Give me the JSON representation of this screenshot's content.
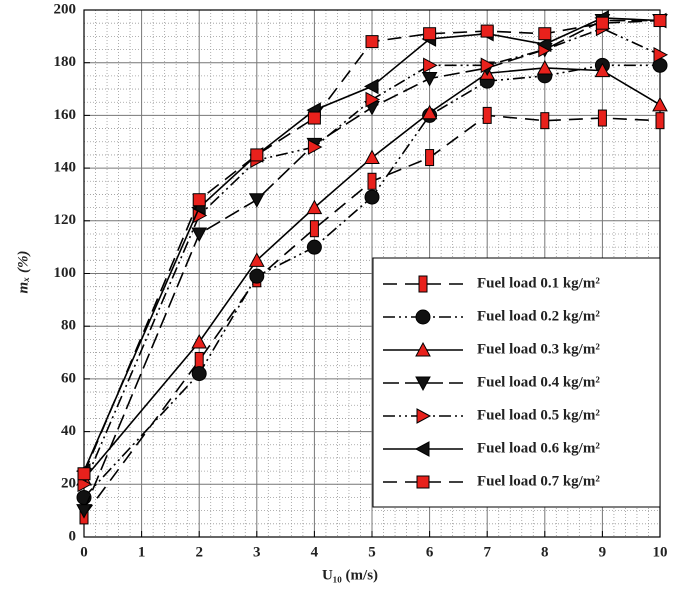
{
  "chart_data": {
    "type": "line",
    "x_label": "U₁₀ (m/s)",
    "y_label": "mₓ (%)",
    "x": [
      0,
      2,
      3,
      4,
      5,
      6,
      7,
      8,
      9,
      10
    ],
    "xlim": [
      0,
      10
    ],
    "xticks": [
      0,
      1,
      2,
      3,
      4,
      5,
      6,
      7,
      8,
      9,
      10
    ],
    "ylim": [
      0,
      200
    ],
    "yticks": [
      0,
      20,
      40,
      60,
      80,
      100,
      120,
      140,
      160,
      180,
      200
    ],
    "grid": true,
    "legend": "lower right",
    "series": [
      {
        "name": "Fuel load 0.1 kg/m²",
        "color": "#e8211c",
        "marker": "bar",
        "dash": "14 8",
        "values": [
          8,
          67,
          98,
          117,
          135,
          144,
          160,
          158,
          159,
          158
        ]
      },
      {
        "name": "Fuel load 0.2 kg/m²",
        "color": "#111111",
        "marker": "circle",
        "dash": "12 4 2 4 2 4",
        "values": [
          15,
          62,
          99,
          110,
          129,
          160,
          173,
          175,
          179,
          179
        ]
      },
      {
        "name": "Fuel load 0.3 kg/m²",
        "color": "#e8211c",
        "marker": "up",
        "dash": "none",
        "values": [
          22,
          74,
          105,
          125,
          144,
          161,
          176,
          178,
          177,
          164
        ]
      },
      {
        "name": "Fuel load 0.4 kg/m²",
        "color": "#111111",
        "marker": "down",
        "dash": "16 6",
        "values": [
          10,
          115,
          128,
          149,
          163,
          174,
          178,
          185,
          196,
          196
        ]
      },
      {
        "name": "Fuel load 0.5 kg/m²",
        "color": "#e8211c",
        "marker": "right",
        "dash": "12 4 2 4 2 4",
        "values": [
          20,
          122,
          143,
          148,
          166,
          179,
          179,
          185,
          193,
          183
        ]
      },
      {
        "name": "Fuel load 0.6 kg/m²",
        "color": "#111111",
        "marker": "left",
        "dash": "none",
        "values": [
          25,
          125,
          145,
          162,
          171,
          189,
          191,
          187,
          197,
          196
        ]
      },
      {
        "name": "Fuel load 0.7 kg/m²",
        "color": "#e8211c",
        "marker": "square",
        "dash": "14 8",
        "values": [
          24,
          128,
          145,
          159,
          188,
          191,
          192,
          191,
          195,
          196
        ]
      }
    ]
  }
}
